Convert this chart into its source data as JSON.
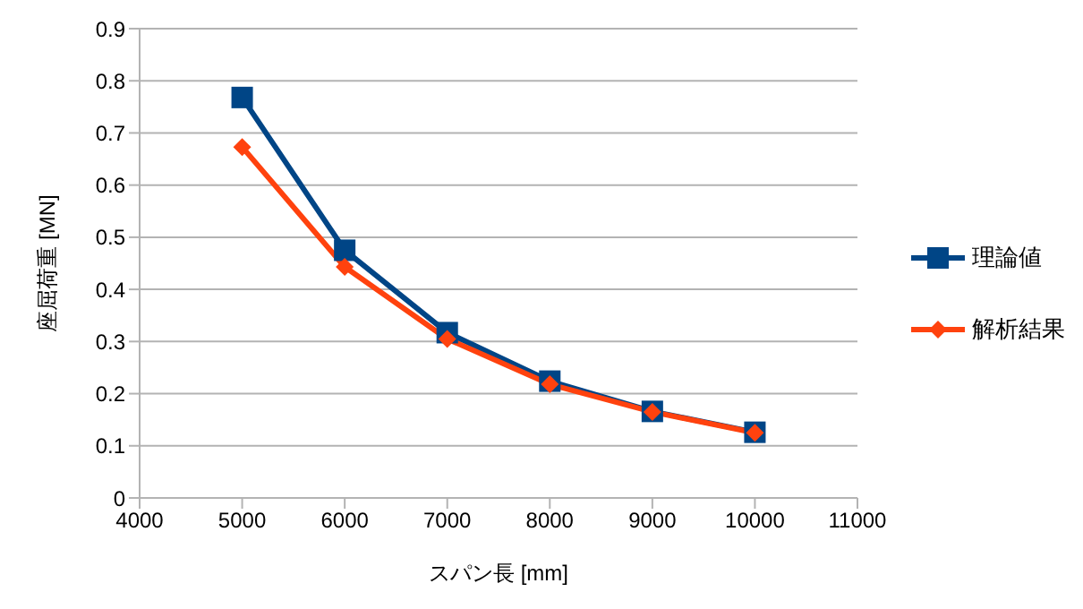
{
  "chart_data": {
    "type": "line",
    "xlabel": "スパン長 [mm]",
    "ylabel": "座屈荷重 [MN]",
    "x": [
      5000,
      6000,
      7000,
      8000,
      9000,
      10000
    ],
    "series": [
      {
        "name": "理論値",
        "color": "#004586",
        "marker": "square",
        "values": [
          0.768,
          0.475,
          0.317,
          0.224,
          0.166,
          0.126
        ]
      },
      {
        "name": "解析結果",
        "color": "#ff420e",
        "marker": "diamond",
        "values": [
          0.673,
          0.443,
          0.305,
          0.218,
          0.165,
          0.125
        ]
      }
    ],
    "xlim": [
      4000,
      11000
    ],
    "xticks": [
      4000,
      5000,
      6000,
      7000,
      8000,
      9000,
      10000,
      11000
    ],
    "ylim": [
      0,
      0.9
    ],
    "yticks": [
      0,
      0.1,
      0.2,
      0.3,
      0.4,
      0.5,
      0.6,
      0.7,
      0.8,
      0.9
    ],
    "grid": "y",
    "legend": "right",
    "line_style": "solid"
  }
}
